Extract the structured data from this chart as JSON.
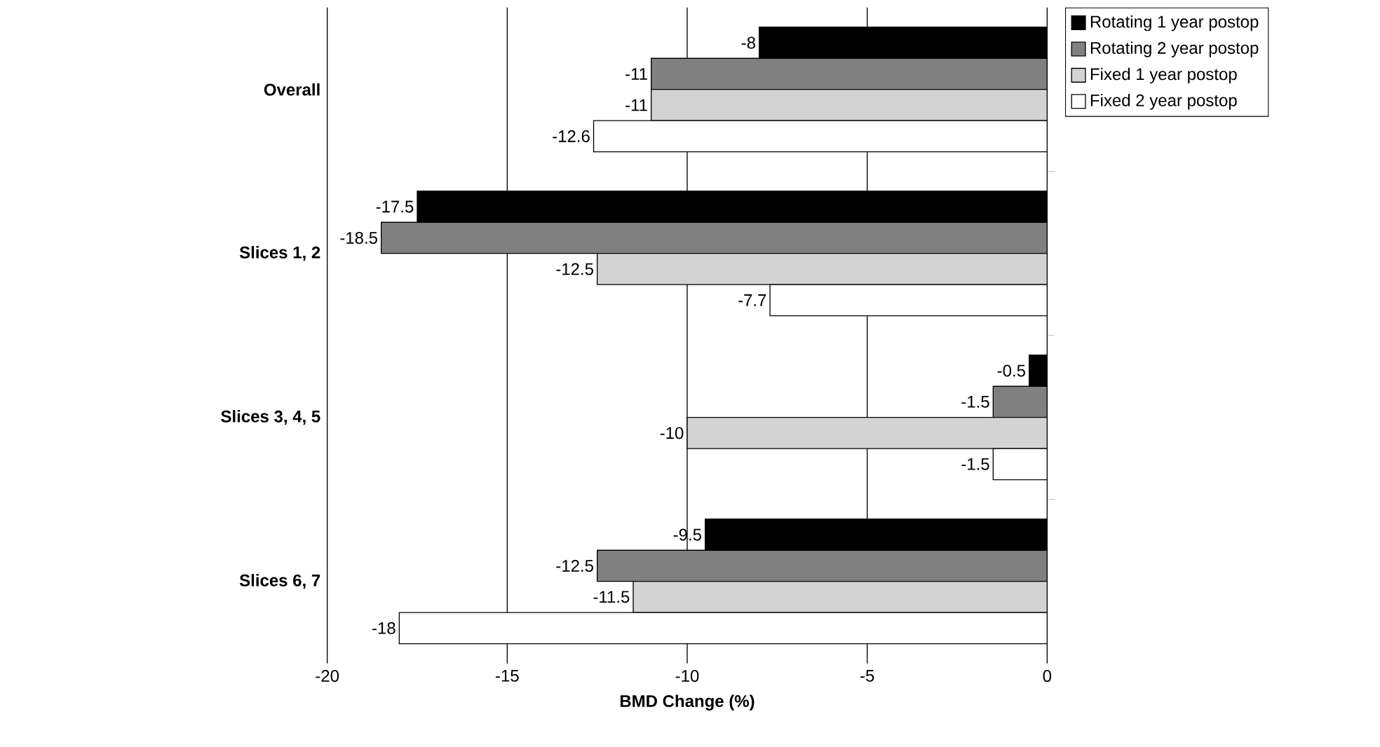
{
  "chart_data": {
    "type": "bar",
    "orientation": "horizontal",
    "xlabel": "BMD Change (%)",
    "categories": [
      "Overall",
      "Slices 1, 2",
      "Slices 3, 4, 5",
      "Slices 6, 7"
    ],
    "series": [
      {
        "name": "Rotating 1 year postop",
        "color": "#000000",
        "values": [
          -8,
          -17.5,
          -0.5,
          -9.5
        ]
      },
      {
        "name": "Rotating 2 year postop",
        "color": "#808080",
        "values": [
          -11,
          -18.5,
          -1.5,
          -12.5
        ]
      },
      {
        "name": "Fixed 1 year postop",
        "color": "#d3d3d3",
        "values": [
          -11,
          -12.5,
          -10,
          -11.5
        ]
      },
      {
        "name": "Fixed 2 year postop",
        "color": "#ffffff",
        "values": [
          -12.6,
          -7.7,
          -1.5,
          -18
        ]
      }
    ],
    "xlim": [
      -20,
      0
    ],
    "xticks": [
      -20,
      -15,
      -10,
      -5,
      0
    ],
    "grid": "x",
    "legend": "top right",
    "data_labels": true
  }
}
